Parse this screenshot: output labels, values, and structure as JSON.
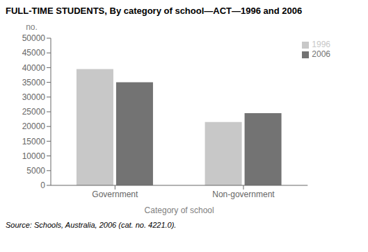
{
  "chart_data": {
    "type": "bar",
    "title": "FULL-TIME STUDENTS, By category of school—ACT—1996 and 2006",
    "xlabel": "Category of school",
    "ylabel": "no.",
    "annotations": [
      "Source: Schools, Australia, 2006 (cat. no. 4221.0)."
    ],
    "categories": [
      "Government",
      "Non-government"
    ],
    "series": [
      {
        "name": "1996",
        "color": "#c8c8c8",
        "values": [
          39500,
          21500
        ]
      },
      {
        "name": "2006",
        "color": "#737373",
        "values": [
          35000,
          24500
        ]
      }
    ],
    "ylim": [
      0,
      50000
    ],
    "yticks": [
      0,
      5000,
      10000,
      15000,
      20000,
      25000,
      30000,
      35000,
      40000,
      45000,
      50000
    ],
    "grid": false,
    "legend": "upper right"
  }
}
